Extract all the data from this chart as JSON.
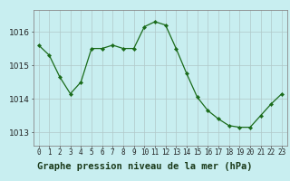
{
  "x": [
    0,
    1,
    2,
    3,
    4,
    5,
    6,
    7,
    8,
    9,
    10,
    11,
    12,
    13,
    14,
    15,
    16,
    17,
    18,
    19,
    20,
    21,
    22,
    23
  ],
  "y": [
    1015.6,
    1015.3,
    1014.65,
    1014.15,
    1014.5,
    1015.5,
    1015.5,
    1015.6,
    1015.5,
    1015.5,
    1016.15,
    1016.3,
    1016.2,
    1015.5,
    1014.75,
    1014.05,
    1013.65,
    1013.4,
    1013.2,
    1013.15,
    1013.15,
    1013.5,
    1013.85,
    1014.15
  ],
  "line_color": "#1a6b1a",
  "marker": "D",
  "marker_size": 2.2,
  "bg_color": "#c8eef0",
  "label_bg": "#5a8f5a",
  "grid_color": "#b0c8c8",
  "xlabel": "Graphe pression niveau de la mer (hPa)",
  "xlabel_fontsize": 7.5,
  "tick_fontsize": 5.5,
  "ytick_fontsize": 6.5,
  "yticks": [
    1013,
    1014,
    1015,
    1016
  ],
  "xticks": [
    0,
    1,
    2,
    3,
    4,
    5,
    6,
    7,
    8,
    9,
    10,
    11,
    12,
    13,
    14,
    15,
    16,
    17,
    18,
    19,
    20,
    21,
    22,
    23
  ],
  "ylim": [
    1012.6,
    1016.65
  ],
  "xlim": [
    -0.5,
    23.5
  ]
}
